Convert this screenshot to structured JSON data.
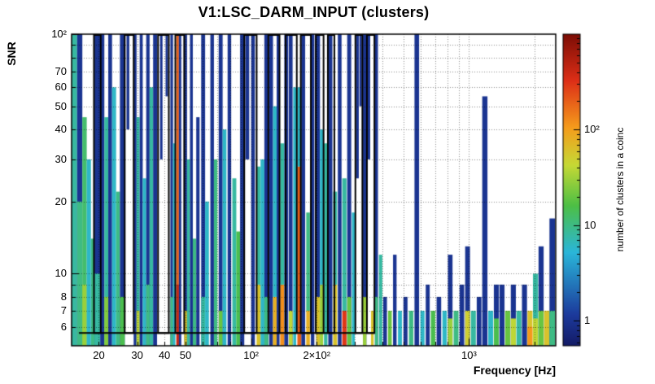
{
  "chart_data": {
    "type": "heatmap",
    "title": "V1:LSC_DARM_INPUT (clusters)",
    "xlabel": "Frequency [Hz]",
    "ylabel": "SNR",
    "xscale": "log",
    "yscale": "log",
    "xlim": [
      15,
      2500
    ],
    "ylim": [
      5,
      100
    ],
    "grid": "dotted",
    "x_ticks": [
      {
        "v": 20,
        "t": "20"
      },
      {
        "v": 30,
        "t": "30"
      },
      {
        "v": 40,
        "t": "40"
      },
      {
        "v": 50,
        "t": "50"
      },
      {
        "v": 100,
        "t": "10²"
      },
      {
        "v": 200,
        "t": "2×10²"
      },
      {
        "v": 1000,
        "t": "10³"
      }
    ],
    "y_ticks": [
      {
        "v": 100,
        "t": "10²"
      },
      {
        "v": 70,
        "t": "70"
      },
      {
        "v": 60,
        "t": "60"
      },
      {
        "v": 50,
        "t": "50"
      },
      {
        "v": 40,
        "t": "40"
      },
      {
        "v": 30,
        "t": "30"
      },
      {
        "v": 20,
        "t": "20"
      },
      {
        "v": 10,
        "t": "10"
      },
      {
        "v": 8,
        "t": "8"
      },
      {
        "v": 7,
        "t": "7"
      },
      {
        "v": 6,
        "t": "6"
      }
    ],
    "colorbar": {
      "label": "number of clusters in a coinc",
      "scale": "log",
      "lim": [
        0.55,
        1000
      ],
      "ticks": [
        {
          "v": 1,
          "t": "1"
        },
        {
          "v": 10,
          "t": "10"
        },
        {
          "v": 100,
          "t": "10²"
        }
      ]
    },
    "palette": {
      "stops": [
        [
          0.0,
          "#141b66"
        ],
        [
          0.1,
          "#1c3a9c"
        ],
        [
          0.3,
          "#2ab6d9"
        ],
        [
          0.45,
          "#4dbf45"
        ],
        [
          0.58,
          "#c6d935"
        ],
        [
          0.7,
          "#f59c1c"
        ],
        [
          0.85,
          "#dd2f17"
        ],
        [
          1.0,
          "#7c0d05"
        ]
      ]
    },
    "contour_baseline": {
      "snr": 5.65,
      "f1": 16.2,
      "f2": 368
    },
    "contour_boxes": [
      [
        19.0,
        20.4
      ],
      [
        26.3,
        28.9
      ],
      [
        37.4,
        41.9
      ],
      [
        44.9,
        49.3
      ],
      [
        93,
        106
      ],
      [
        120,
        135
      ],
      [
        144,
        162
      ],
      [
        169,
        188
      ],
      [
        198,
        215
      ],
      [
        225,
        241
      ],
      [
        301,
        324
      ],
      [
        340,
        368
      ]
    ],
    "columns": [
      [
        15.0,
        15.9,
        [
          [
            5,
            100,
            8
          ]
        ]
      ],
      [
        15.9,
        16.8,
        [
          [
            5,
            100,
            1
          ],
          [
            5,
            20,
            10
          ]
        ]
      ],
      [
        16.8,
        17.6,
        [
          [
            5,
            45,
            12
          ],
          [
            5,
            9,
            30
          ]
        ]
      ],
      [
        17.6,
        18.4,
        [
          [
            5,
            30,
            6
          ]
        ]
      ],
      [
        18.4,
        19.1,
        [
          [
            5,
            14,
            10
          ]
        ]
      ],
      [
        19.1,
        20.3,
        [
          [
            5,
            100,
            1
          ],
          [
            5,
            10,
            8
          ]
        ]
      ],
      [
        20.3,
        21.2,
        [
          [
            5,
            100,
            1
          ]
        ]
      ],
      [
        21.2,
        22.1,
        [
          [
            5,
            45,
            8
          ],
          [
            5,
            8,
            25
          ]
        ]
      ],
      [
        22.1,
        23.0,
        [
          [
            5,
            100,
            1
          ]
        ]
      ],
      [
        23.0,
        24.0,
        [
          [
            5,
            60,
            6
          ]
        ]
      ],
      [
        24.0,
        25.0,
        [
          [
            5,
            22,
            10
          ]
        ]
      ],
      [
        25.0,
        26.3,
        [
          [
            5,
            100,
            1
          ],
          [
            5,
            8,
            15
          ]
        ]
      ],
      [
        26.8,
        27.6,
        [
          [
            40,
            100,
            1
          ]
        ]
      ],
      [
        28.9,
        29.8,
        [
          [
            5,
            100,
            1
          ]
        ]
      ],
      [
        29.8,
        30.8,
        [
          [
            5,
            45,
            8
          ],
          [
            5,
            7,
            40
          ]
        ]
      ],
      [
        30.8,
        31.8,
        [
          [
            5,
            100,
            1
          ]
        ]
      ],
      [
        31.8,
        33.0,
        [
          [
            5,
            25,
            6
          ]
        ]
      ],
      [
        33.0,
        34.2,
        [
          [
            5,
            100,
            1
          ],
          [
            5,
            9,
            10
          ]
        ]
      ],
      [
        34.2,
        35.5,
        [
          [
            5,
            60,
            8
          ]
        ]
      ],
      [
        35.5,
        37.0,
        [
          [
            5,
            100,
            1
          ]
        ]
      ],
      [
        38.2,
        39.2,
        [
          [
            30,
            100,
            1
          ]
        ]
      ],
      [
        40.5,
        41.5,
        [
          [
            55,
            100,
            1
          ]
        ]
      ],
      [
        42.6,
        43.8,
        [
          [
            5,
            100,
            1
          ],
          [
            5,
            8,
            10
          ]
        ]
      ],
      [
        43.8,
        44.9,
        [
          [
            5,
            35,
            6
          ]
        ]
      ],
      [
        45.4,
        46.6,
        [
          [
            5,
            100,
            200
          ],
          [
            5,
            9,
            420
          ]
        ]
      ],
      [
        46.6,
        47.8,
        [
          [
            5,
            100,
            1
          ]
        ]
      ],
      [
        49.3,
        50.8,
        [
          [
            5,
            100,
            1
          ],
          [
            5,
            7,
            60
          ]
        ]
      ],
      [
        50.8,
        52.4,
        [
          [
            5,
            30,
            8
          ]
        ]
      ],
      [
        52.4,
        54.0,
        [
          [
            5,
            100,
            1
          ]
        ]
      ],
      [
        54.0,
        56.0,
        [
          [
            5,
            14,
            10
          ]
        ]
      ],
      [
        56.0,
        58.0,
        [
          [
            5,
            45,
            1
          ]
        ]
      ],
      [
        59.0,
        61.5,
        [
          [
            5,
            100,
            1
          ],
          [
            5,
            8,
            8
          ]
        ]
      ],
      [
        61.5,
        64.0,
        [
          [
            5,
            20,
            6
          ]
        ]
      ],
      [
        65.0,
        67.5,
        [
          [
            5,
            100,
            1
          ]
        ]
      ],
      [
        67.5,
        70.0,
        [
          [
            5,
            30,
            10
          ]
        ]
      ],
      [
        71.0,
        74.0,
        [
          [
            5,
            100,
            1
          ],
          [
            5,
            7,
            20
          ]
        ]
      ],
      [
        74.0,
        77.0,
        [
          [
            5,
            40,
            6
          ]
        ]
      ],
      [
        78.0,
        81.0,
        [
          [
            5,
            100,
            1
          ]
        ]
      ],
      [
        82.0,
        85.5,
        [
          [
            5,
            25,
            8
          ]
        ]
      ],
      [
        85.5,
        89.0,
        [
          [
            5,
            15,
            15
          ]
        ]
      ],
      [
        89.0,
        93.0,
        [
          [
            5,
            100,
            1
          ]
        ]
      ],
      [
        94.0,
        98.0,
        [
          [
            30,
            100,
            1
          ]
        ]
      ],
      [
        100.0,
        104.0,
        [
          [
            5,
            100,
            1
          ]
        ]
      ],
      [
        106.0,
        110.5,
        [
          [
            5,
            9,
            60
          ],
          [
            9,
            28,
            8
          ]
        ]
      ],
      [
        110.5,
        115.0,
        [
          [
            5,
            30,
            6
          ]
        ]
      ],
      [
        115.0,
        120.0,
        [
          [
            5,
            100,
            1
          ],
          [
            5,
            8,
            10
          ]
        ]
      ],
      [
        121.0,
        126.0,
        [
          [
            5,
            100,
            1
          ]
        ]
      ],
      [
        126.0,
        131.0,
        [
          [
            5,
            8,
            80
          ],
          [
            8,
            50,
            6
          ]
        ]
      ],
      [
        131.0,
        135.0,
        [
          [
            5,
            100,
            1
          ]
        ]
      ],
      [
        136.0,
        142.0,
        [
          [
            5,
            9,
            120
          ],
          [
            9,
            35,
            8
          ]
        ]
      ],
      [
        142.0,
        148.0,
        [
          [
            5,
            100,
            1
          ]
        ]
      ],
      [
        149.0,
        155.0,
        [
          [
            5,
            100,
            1
          ],
          [
            5,
            7,
            40
          ]
        ]
      ],
      [
        156.0,
        161.0,
        [
          [
            5,
            60,
            6
          ]
        ]
      ],
      [
        163.0,
        170.0,
        [
          [
            5,
            28,
            200
          ],
          [
            28,
            60,
            6
          ]
        ]
      ],
      [
        170.0,
        177.0,
        [
          [
            5,
            100,
            1
          ]
        ]
      ],
      [
        179.0,
        186.0,
        [
          [
            5,
            7,
            80
          ],
          [
            7,
            18,
            10
          ]
        ]
      ],
      [
        188.0,
        195.0,
        [
          [
            5,
            100,
            1
          ]
        ]
      ],
      [
        199.0,
        207.0,
        [
          [
            5,
            100,
            1
          ],
          [
            5,
            8,
            60
          ]
        ]
      ],
      [
        207.0,
        214.0,
        [
          [
            5,
            9,
            30
          ],
          [
            9,
            40,
            6
          ]
        ]
      ],
      [
        216.0,
        224.0,
        [
          [
            5,
            35,
            8
          ]
        ]
      ],
      [
        226.0,
        236.0,
        [
          [
            5,
            100,
            1
          ]
        ]
      ],
      [
        238.0,
        248.0,
        [
          [
            5,
            9,
            60
          ],
          [
            9,
            22,
            8
          ]
        ]
      ],
      [
        250.0,
        260.0,
        [
          [
            5,
            100,
            1
          ]
        ]
      ],
      [
        262.0,
        274.0,
        [
          [
            5,
            7,
            300
          ],
          [
            7,
            25,
            8
          ]
        ]
      ],
      [
        276.0,
        288.0,
        [
          [
            5,
            100,
            1
          ],
          [
            5,
            8,
            20
          ]
        ]
      ],
      [
        290.0,
        299.0,
        [
          [
            5,
            18,
            6
          ]
        ]
      ],
      [
        303.0,
        312.0,
        [
          [
            25,
            100,
            1
          ]
        ]
      ],
      [
        314.0,
        322.0,
        [
          [
            50,
            100,
            1
          ]
        ]
      ],
      [
        326.0,
        338.0,
        [
          [
            5,
            100,
            1
          ],
          [
            5,
            8,
            30
          ]
        ]
      ],
      [
        342.0,
        352.0,
        [
          [
            30,
            100,
            1
          ]
        ]
      ],
      [
        355.0,
        365.0,
        [
          [
            5,
            7,
            60
          ]
        ]
      ],
      [
        370.0,
        382.0,
        [
          [
            5,
            100,
            1
          ],
          [
            5,
            8,
            10
          ]
        ]
      ],
      [
        386.0,
        400.0,
        [
          [
            5,
            12,
            8
          ]
        ]
      ],
      [
        404.0,
        420.0,
        [
          [
            5,
            8,
            1
          ]
        ]
      ],
      [
        425.0,
        442.0,
        [
          [
            5,
            7,
            20
          ]
        ]
      ],
      [
        448.0,
        465.0,
        [
          [
            5,
            12,
            1
          ]
        ]
      ],
      [
        472.0,
        492.0,
        [
          [
            5,
            7,
            6
          ]
        ]
      ],
      [
        500.0,
        522.0,
        [
          [
            5,
            8,
            1
          ]
        ]
      ],
      [
        530.0,
        555.0,
        [
          [
            5,
            7,
            10
          ]
        ]
      ],
      [
        562.0,
        590.0,
        [
          [
            5,
            100,
            1
          ]
        ]
      ],
      [
        598.0,
        625.0,
        [
          [
            5,
            7,
            6
          ]
        ]
      ],
      [
        633.0,
        660.0,
        [
          [
            5,
            9,
            1
          ]
        ]
      ],
      [
        668.0,
        700.0,
        [
          [
            5,
            7,
            15
          ]
        ]
      ],
      [
        710.0,
        745.0,
        [
          [
            5,
            8,
            1
          ]
        ]
      ],
      [
        755.0,
        790.0,
        [
          [
            5,
            7,
            6
          ]
        ]
      ],
      [
        800.0,
        840.0,
        [
          [
            5,
            12,
            1
          ],
          [
            5,
            6.5,
            30
          ]
        ]
      ],
      [
        850.0,
        895.0,
        [
          [
            5,
            7,
            10
          ]
        ]
      ],
      [
        905.0,
        950.0,
        [
          [
            5,
            9,
            1
          ]
        ]
      ],
      [
        960.0,
        1010.0,
        [
          [
            5,
            13,
            1
          ],
          [
            5,
            7,
            50
          ]
        ]
      ],
      [
        1020.0,
        1075.0,
        [
          [
            5,
            7,
            8
          ]
        ]
      ],
      [
        1085.0,
        1140.0,
        [
          [
            5,
            8,
            1
          ]
        ]
      ],
      [
        1150.0,
        1215.0,
        [
          [
            5,
            55,
            1
          ]
        ]
      ],
      [
        1225.0,
        1290.0,
        [
          [
            5,
            7,
            6
          ]
        ]
      ],
      [
        1300.0,
        1370.0,
        [
          [
            5,
            9,
            1
          ],
          [
            5,
            6.5,
            15
          ]
        ]
      ],
      [
        1380.0,
        1455.0,
        [
          [
            5,
            9,
            1
          ]
        ]
      ],
      [
        1465.0,
        1545.0,
        [
          [
            5,
            7,
            20
          ]
        ]
      ],
      [
        1555.0,
        1640.0,
        [
          [
            5,
            9,
            1
          ],
          [
            5,
            6.5,
            40
          ]
        ]
      ],
      [
        1650.0,
        1740.0,
        [
          [
            5,
            7,
            8
          ]
        ]
      ],
      [
        1750.0,
        1845.0,
        [
          [
            5,
            9,
            1
          ]
        ]
      ],
      [
        1855.0,
        1955.0,
        [
          [
            5,
            7,
            60
          ],
          [
            5,
            6,
            110
          ]
        ]
      ],
      [
        1965.0,
        2075.0,
        [
          [
            5,
            10,
            8
          ],
          [
            5,
            6.5,
            40
          ]
        ]
      ],
      [
        2085.0,
        2200.0,
        [
          [
            5,
            13,
            1
          ],
          [
            5,
            7,
            20
          ]
        ]
      ],
      [
        2210.0,
        2340.0,
        [
          [
            5,
            7,
            60
          ]
        ]
      ],
      [
        2340.0,
        2480.0,
        [
          [
            5,
            17,
            1
          ],
          [
            5,
            7,
            10
          ]
        ]
      ]
    ]
  }
}
